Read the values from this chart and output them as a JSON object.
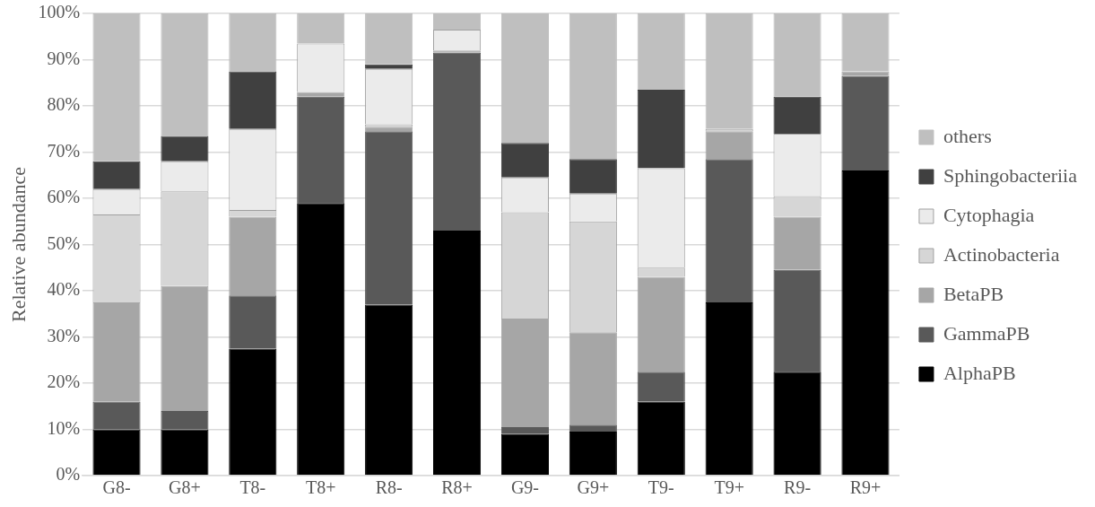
{
  "chart_data": {
    "type": "bar",
    "stacked": true,
    "ylabel": "Relative abundance",
    "categories": [
      "G8-",
      "G8+",
      "T8-",
      "T8+",
      "R8-",
      "R8+",
      "G9-",
      "G9+",
      "T9-",
      "T9+",
      "R9-",
      "R9+"
    ],
    "series": [
      {
        "name": "AlphaPB",
        "color": "#000000",
        "values": [
          10,
          10,
          27.5,
          59,
          37,
          53,
          9,
          9.5,
          16,
          37.5,
          22.5,
          66
        ]
      },
      {
        "name": "GammaPB",
        "color": "#595959",
        "values": [
          6,
          4,
          11.5,
          23,
          37.5,
          38.5,
          1.5,
          1.5,
          6.5,
          31,
          22,
          20.5
        ]
      },
      {
        "name": "BetaPB",
        "color": "#a6a6a6",
        "values": [
          21.5,
          27,
          17,
          1,
          1,
          0.5,
          23.5,
          20,
          20.5,
          6,
          11.5,
          1
        ]
      },
      {
        "name": "Actinobacteria",
        "color": "#d6d6d6",
        "values": [
          19,
          20.5,
          1.5,
          0,
          0.5,
          0,
          23,
          24,
          2,
          0.5,
          4.5,
          0
        ]
      },
      {
        "name": "Cytophagia",
        "color": "#ebebeb",
        "values": [
          5.5,
          6.5,
          17.5,
          10.5,
          12,
          4.5,
          7.5,
          6,
          21.5,
          0,
          13.5,
          0
        ]
      },
      {
        "name": "Sphingobacteriia",
        "color": "#404040",
        "values": [
          6,
          5.5,
          12.5,
          0,
          1,
          0,
          7.5,
          7.5,
          17,
          0,
          8,
          0
        ]
      },
      {
        "name": "others",
        "color": "#bfbfbf",
        "values": [
          32,
          26.5,
          12.5,
          6.5,
          11,
          3.5,
          28,
          31.5,
          16.5,
          25,
          18,
          12.5
        ]
      }
    ],
    "ylim": [
      0,
      100
    ],
    "yticks": [
      {
        "value": 0,
        "label": "0%"
      },
      {
        "value": 10,
        "label": "10%"
      },
      {
        "value": 20,
        "label": "20%"
      },
      {
        "value": 30,
        "label": "30%"
      },
      {
        "value": 40,
        "label": "40%"
      },
      {
        "value": 50,
        "label": "50%"
      },
      {
        "value": 60,
        "label": "60%"
      },
      {
        "value": 70,
        "label": "70%"
      },
      {
        "value": 80,
        "label": "80%"
      },
      {
        "value": 90,
        "label": "90%"
      },
      {
        "value": 100,
        "label": "100%"
      }
    ],
    "grid": "y",
    "legend": "right"
  }
}
